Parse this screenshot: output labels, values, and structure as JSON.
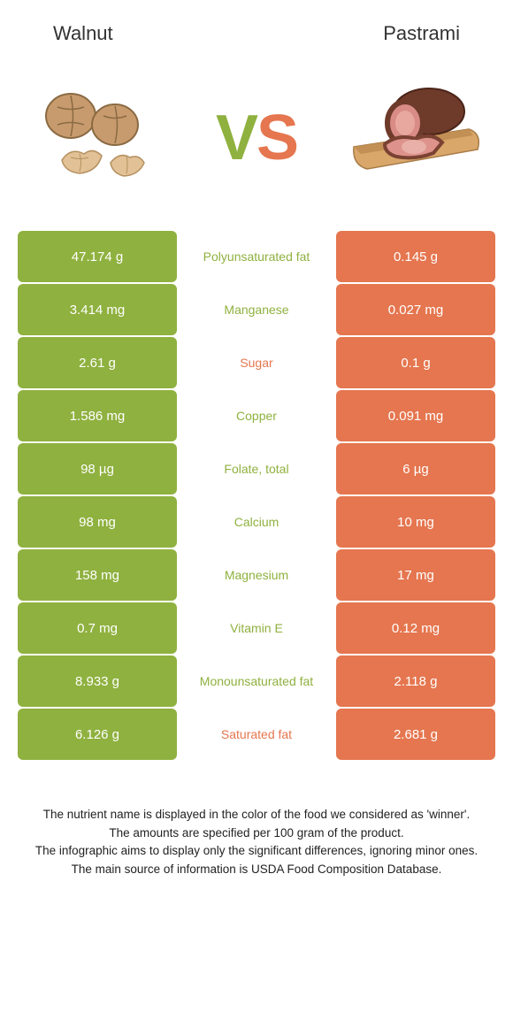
{
  "colors": {
    "left": "#8fb13f",
    "right": "#e5764f",
    "vs_v": "#8fb13f",
    "vs_s": "#e5764f",
    "row_bg": "#ffffff",
    "text_white": "#ffffff",
    "header_text": "#333333"
  },
  "header": {
    "left_title": "Walnut",
    "right_title": "Pastrami"
  },
  "vs": {
    "v": "V",
    "s": "S"
  },
  "rows": [
    {
      "left": "47.174 g",
      "mid": "Polyunsaturated fat",
      "right": "0.145 g",
      "winner": "left"
    },
    {
      "left": "3.414 mg",
      "mid": "Manganese",
      "right": "0.027 mg",
      "winner": "left"
    },
    {
      "left": "2.61 g",
      "mid": "Sugar",
      "right": "0.1 g",
      "winner": "right"
    },
    {
      "left": "1.586 mg",
      "mid": "Copper",
      "right": "0.091 mg",
      "winner": "left"
    },
    {
      "left": "98 µg",
      "mid": "Folate, total",
      "right": "6 µg",
      "winner": "left"
    },
    {
      "left": "98 mg",
      "mid": "Calcium",
      "right": "10 mg",
      "winner": "left"
    },
    {
      "left": "158 mg",
      "mid": "Magnesium",
      "right": "17 mg",
      "winner": "left"
    },
    {
      "left": "0.7 mg",
      "mid": "Vitamin E",
      "right": "0.12 mg",
      "winner": "left"
    },
    {
      "left": "8.933 g",
      "mid": "Monounsaturated fat",
      "right": "2.118 g",
      "winner": "left"
    },
    {
      "left": "6.126 g",
      "mid": "Saturated fat",
      "right": "2.681 g",
      "winner": "right"
    }
  ],
  "footnotes": [
    "The nutrient name is displayed in the color of the food we considered as 'winner'.",
    "The amounts are specified per 100 gram of the product.",
    "The infographic aims to display only the significant differences, ignoring minor ones.",
    "The main source of information is USDA Food Composition Database."
  ]
}
